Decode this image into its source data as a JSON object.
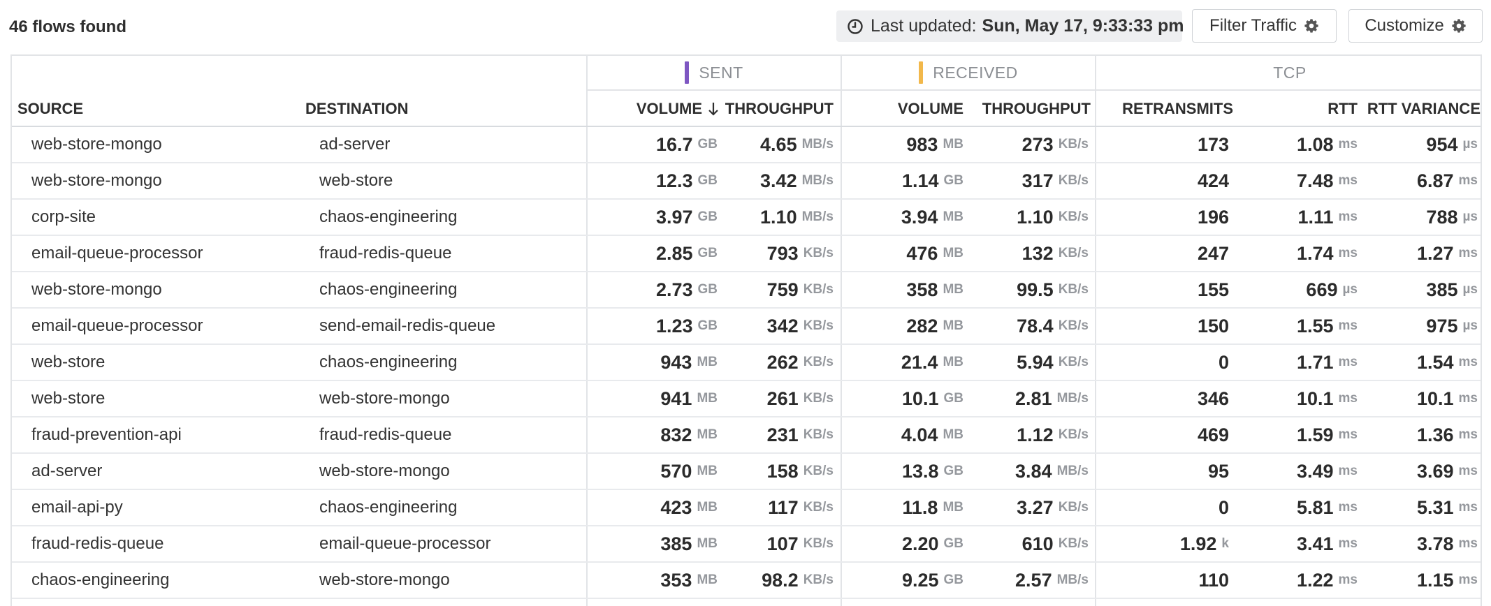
{
  "toolbar": {
    "flows_count": "46 flows found",
    "last_updated_label": "Last updated:",
    "last_updated_value": "Sun, May 17, 9:33:33 pm",
    "filter_label": "Filter Traffic",
    "customize_label": "Customize"
  },
  "groups": {
    "sent": "SENT",
    "received": "RECEIVED",
    "tcp": "TCP",
    "sent_color": "#7e57c2",
    "received_color": "#f2b84b"
  },
  "columns": {
    "source": "SOURCE",
    "destination": "DESTINATION",
    "sent_volume": "VOLUME",
    "sent_throughput": "THROUGHPUT",
    "recv_volume": "VOLUME",
    "recv_throughput": "THROUGHPUT",
    "retransmits": "RETRANSMITS",
    "rtt": "RTT",
    "rtt_variance": "RTT VARIANCE",
    "sort_icon": "arrow-down-icon"
  },
  "rows": [
    {
      "source": "web-store-mongo",
      "destination": "ad-server",
      "sent_vol": "16.7",
      "sent_vol_u": "GB",
      "sent_thr": "4.65",
      "sent_thr_u": "MB/s",
      "recv_vol": "983",
      "recv_vol_u": "MB",
      "recv_thr": "273",
      "recv_thr_u": "KB/s",
      "retrans": "173",
      "retrans_u": "",
      "rtt": "1.08",
      "rtt_u": "ms",
      "rttvar": "954",
      "rttvar_u": "µs"
    },
    {
      "source": "web-store-mongo",
      "destination": "web-store",
      "sent_vol": "12.3",
      "sent_vol_u": "GB",
      "sent_thr": "3.42",
      "sent_thr_u": "MB/s",
      "recv_vol": "1.14",
      "recv_vol_u": "GB",
      "recv_thr": "317",
      "recv_thr_u": "KB/s",
      "retrans": "424",
      "retrans_u": "",
      "rtt": "7.48",
      "rtt_u": "ms",
      "rttvar": "6.87",
      "rttvar_u": "ms"
    },
    {
      "source": "corp-site",
      "destination": "chaos-engineering",
      "sent_vol": "3.97",
      "sent_vol_u": "GB",
      "sent_thr": "1.10",
      "sent_thr_u": "MB/s",
      "recv_vol": "3.94",
      "recv_vol_u": "MB",
      "recv_thr": "1.10",
      "recv_thr_u": "KB/s",
      "retrans": "196",
      "retrans_u": "",
      "rtt": "1.11",
      "rtt_u": "ms",
      "rttvar": "788",
      "rttvar_u": "µs"
    },
    {
      "source": "email-queue-processor",
      "destination": "fraud-redis-queue",
      "sent_vol": "2.85",
      "sent_vol_u": "GB",
      "sent_thr": "793",
      "sent_thr_u": "KB/s",
      "recv_vol": "476",
      "recv_vol_u": "MB",
      "recv_thr": "132",
      "recv_thr_u": "KB/s",
      "retrans": "247",
      "retrans_u": "",
      "rtt": "1.74",
      "rtt_u": "ms",
      "rttvar": "1.27",
      "rttvar_u": "ms"
    },
    {
      "source": "web-store-mongo",
      "destination": "chaos-engineering",
      "sent_vol": "2.73",
      "sent_vol_u": "GB",
      "sent_thr": "759",
      "sent_thr_u": "KB/s",
      "recv_vol": "358",
      "recv_vol_u": "MB",
      "recv_thr": "99.5",
      "recv_thr_u": "KB/s",
      "retrans": "155",
      "retrans_u": "",
      "rtt": "669",
      "rtt_u": "µs",
      "rttvar": "385",
      "rttvar_u": "µs"
    },
    {
      "source": "email-queue-processor",
      "destination": "send-email-redis-queue",
      "sent_vol": "1.23",
      "sent_vol_u": "GB",
      "sent_thr": "342",
      "sent_thr_u": "KB/s",
      "recv_vol": "282",
      "recv_vol_u": "MB",
      "recv_thr": "78.4",
      "recv_thr_u": "KB/s",
      "retrans": "150",
      "retrans_u": "",
      "rtt": "1.55",
      "rtt_u": "ms",
      "rttvar": "975",
      "rttvar_u": "µs"
    },
    {
      "source": "web-store",
      "destination": "chaos-engineering",
      "sent_vol": "943",
      "sent_vol_u": "MB",
      "sent_thr": "262",
      "sent_thr_u": "KB/s",
      "recv_vol": "21.4",
      "recv_vol_u": "MB",
      "recv_thr": "5.94",
      "recv_thr_u": "KB/s",
      "retrans": "0",
      "retrans_u": "",
      "rtt": "1.71",
      "rtt_u": "ms",
      "rttvar": "1.54",
      "rttvar_u": "ms"
    },
    {
      "source": "web-store",
      "destination": "web-store-mongo",
      "sent_vol": "941",
      "sent_vol_u": "MB",
      "sent_thr": "261",
      "sent_thr_u": "KB/s",
      "recv_vol": "10.1",
      "recv_vol_u": "GB",
      "recv_thr": "2.81",
      "recv_thr_u": "MB/s",
      "retrans": "346",
      "retrans_u": "",
      "rtt": "10.1",
      "rtt_u": "ms",
      "rttvar": "10.1",
      "rttvar_u": "ms"
    },
    {
      "source": "fraud-prevention-api",
      "destination": "fraud-redis-queue",
      "sent_vol": "832",
      "sent_vol_u": "MB",
      "sent_thr": "231",
      "sent_thr_u": "KB/s",
      "recv_vol": "4.04",
      "recv_vol_u": "MB",
      "recv_thr": "1.12",
      "recv_thr_u": "KB/s",
      "retrans": "469",
      "retrans_u": "",
      "rtt": "1.59",
      "rtt_u": "ms",
      "rttvar": "1.36",
      "rttvar_u": "ms"
    },
    {
      "source": "ad-server",
      "destination": "web-store-mongo",
      "sent_vol": "570",
      "sent_vol_u": "MB",
      "sent_thr": "158",
      "sent_thr_u": "KB/s",
      "recv_vol": "13.8",
      "recv_vol_u": "GB",
      "recv_thr": "3.84",
      "recv_thr_u": "MB/s",
      "retrans": "95",
      "retrans_u": "",
      "rtt": "3.49",
      "rtt_u": "ms",
      "rttvar": "3.69",
      "rttvar_u": "ms"
    },
    {
      "source": "email-api-py",
      "destination": "chaos-engineering",
      "sent_vol": "423",
      "sent_vol_u": "MB",
      "sent_thr": "117",
      "sent_thr_u": "KB/s",
      "recv_vol": "11.8",
      "recv_vol_u": "MB",
      "recv_thr": "3.27",
      "recv_thr_u": "KB/s",
      "retrans": "0",
      "retrans_u": "",
      "rtt": "5.81",
      "rtt_u": "ms",
      "rttvar": "5.31",
      "rttvar_u": "ms"
    },
    {
      "source": "fraud-redis-queue",
      "destination": "email-queue-processor",
      "sent_vol": "385",
      "sent_vol_u": "MB",
      "sent_thr": "107",
      "sent_thr_u": "KB/s",
      "recv_vol": "2.20",
      "recv_vol_u": "GB",
      "recv_thr": "610",
      "recv_thr_u": "KB/s",
      "retrans": "1.92",
      "retrans_u": "k",
      "rtt": "3.41",
      "rtt_u": "ms",
      "rttvar": "3.78",
      "rttvar_u": "ms"
    },
    {
      "source": "chaos-engineering",
      "destination": "web-store-mongo",
      "sent_vol": "353",
      "sent_vol_u": "MB",
      "sent_thr": "98.2",
      "sent_thr_u": "KB/s",
      "recv_vol": "9.25",
      "recv_vol_u": "GB",
      "recv_thr": "2.57",
      "recv_thr_u": "MB/s",
      "retrans": "110",
      "retrans_u": "",
      "rtt": "1.22",
      "rtt_u": "ms",
      "rttvar": "1.15",
      "rttvar_u": "ms"
    }
  ]
}
